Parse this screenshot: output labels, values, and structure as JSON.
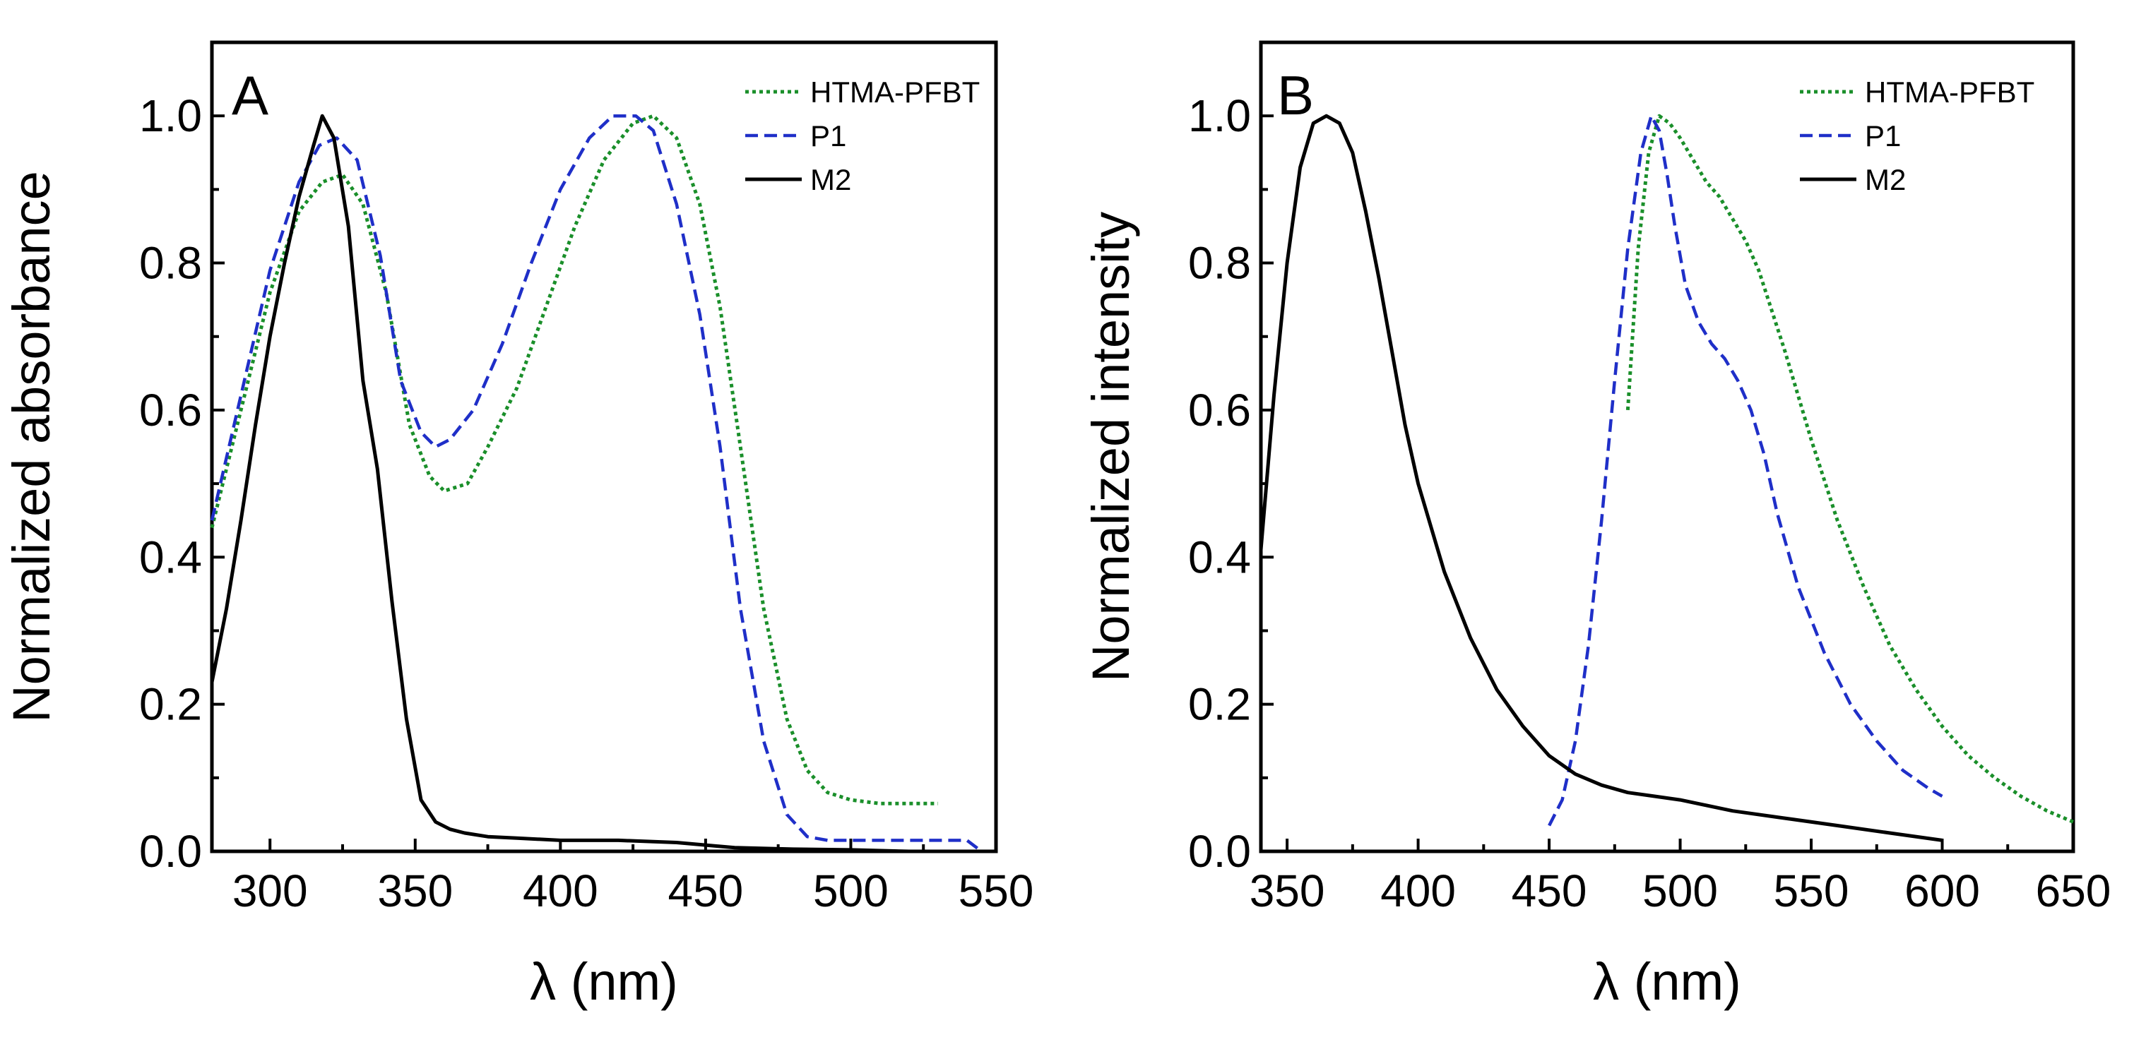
{
  "colors": {
    "HTMA-PFBT": "#1a8f2a",
    "P1": "#1f2fc8",
    "M2": "#000000"
  },
  "chart_data": [
    {
      "type": "line",
      "panel_label": "A",
      "title": "",
      "xlabel": "λ (nm)",
      "ylabel": "Normalized absorbance",
      "xlim": [
        280,
        550
      ],
      "ylim": [
        0,
        1.1
      ],
      "xticks": [
        300,
        350,
        400,
        450,
        500,
        550
      ],
      "yticks": [
        0.0,
        0.2,
        0.4,
        0.6,
        0.8,
        1.0
      ],
      "xtick_labels": [
        "300",
        "350",
        "400",
        "450",
        "500",
        "550"
      ],
      "ytick_labels": [
        "0.0",
        "0.2",
        "0.4",
        "0.6",
        "0.8",
        "1.0"
      ],
      "legend_position": "top-right",
      "grid": false,
      "series": [
        {
          "name": "HTMA-PFBT",
          "style": "dotted",
          "x": [
            280,
            290,
            300,
            310,
            318,
            325,
            332,
            340,
            348,
            355,
            360,
            368,
            375,
            385,
            395,
            405,
            415,
            425,
            432,
            440,
            448,
            455,
            462,
            470,
            478,
            485,
            492,
            500,
            510,
            520,
            530
          ],
          "y": [
            0.44,
            0.6,
            0.76,
            0.87,
            0.91,
            0.92,
            0.88,
            0.76,
            0.58,
            0.51,
            0.49,
            0.5,
            0.55,
            0.63,
            0.74,
            0.85,
            0.94,
            0.99,
            1.0,
            0.97,
            0.88,
            0.74,
            0.55,
            0.33,
            0.18,
            0.11,
            0.08,
            0.07,
            0.065,
            0.065,
            0.065
          ]
        },
        {
          "name": "P1",
          "style": "dashed",
          "x": [
            280,
            290,
            300,
            310,
            317,
            323,
            330,
            338,
            345,
            352,
            357,
            362,
            370,
            380,
            390,
            400,
            410,
            418,
            426,
            432,
            440,
            448,
            455,
            462,
            470,
            478,
            485,
            492,
            500,
            510,
            520,
            530,
            540,
            545
          ],
          "y": [
            0.45,
            0.62,
            0.79,
            0.91,
            0.96,
            0.97,
            0.94,
            0.81,
            0.64,
            0.57,
            0.55,
            0.56,
            0.6,
            0.69,
            0.8,
            0.9,
            0.97,
            1.0,
            1.0,
            0.98,
            0.88,
            0.73,
            0.55,
            0.33,
            0.15,
            0.05,
            0.02,
            0.015,
            0.015,
            0.015,
            0.015,
            0.015,
            0.015,
            0.0
          ]
        },
        {
          "name": "M2",
          "style": "solid",
          "x": [
            280,
            285,
            290,
            295,
            300,
            305,
            310,
            315,
            318,
            322,
            327,
            332,
            337,
            342,
            347,
            352,
            357,
            362,
            367,
            375,
            385,
            400,
            420,
            440,
            460,
            480,
            500,
            520,
            540
          ],
          "y": [
            0.23,
            0.33,
            0.45,
            0.58,
            0.7,
            0.8,
            0.89,
            0.96,
            1.0,
            0.97,
            0.85,
            0.64,
            0.52,
            0.34,
            0.18,
            0.07,
            0.04,
            0.03,
            0.025,
            0.02,
            0.018,
            0.015,
            0.015,
            0.012,
            0.005,
            0.003,
            0.002,
            0.0,
            0.0
          ]
        }
      ]
    },
    {
      "type": "line",
      "panel_label": "B",
      "title": "",
      "xlabel": "λ (nm)",
      "ylabel": "Normalized intensity",
      "xlim": [
        340,
        650
      ],
      "ylim": [
        0,
        1.1
      ],
      "xticks": [
        350,
        400,
        450,
        500,
        550,
        600,
        650
      ],
      "yticks": [
        0.0,
        0.2,
        0.4,
        0.6,
        0.8,
        1.0
      ],
      "xtick_labels": [
        "350",
        "400",
        "450",
        "500",
        "550",
        "600",
        "650"
      ],
      "ytick_labels": [
        "0.0",
        "0.2",
        "0.4",
        "0.6",
        "0.8",
        "1.0"
      ],
      "legend_position": "top-right",
      "grid": false,
      "series": [
        {
          "name": "HTMA-PFBT",
          "style": "dotted",
          "x": [
            480,
            484,
            488,
            492,
            496,
            500,
            505,
            510,
            515,
            520,
            525,
            530,
            540,
            550,
            560,
            570,
            580,
            590,
            600,
            610,
            620,
            630,
            640,
            650
          ],
          "y": [
            0.6,
            0.82,
            0.95,
            1.0,
            0.99,
            0.97,
            0.94,
            0.91,
            0.89,
            0.86,
            0.83,
            0.79,
            0.68,
            0.56,
            0.45,
            0.36,
            0.28,
            0.22,
            0.17,
            0.13,
            0.1,
            0.075,
            0.055,
            0.04
          ]
        },
        {
          "name": "P1",
          "style": "dashed",
          "x": [
            450,
            455,
            460,
            465,
            470,
            475,
            480,
            485,
            489,
            492,
            495,
            498,
            502,
            507,
            512,
            517,
            522,
            527,
            532,
            537,
            545,
            555,
            565,
            575,
            585,
            595,
            600
          ],
          "y": [
            0.035,
            0.07,
            0.15,
            0.28,
            0.45,
            0.64,
            0.82,
            0.95,
            1.0,
            0.98,
            0.92,
            0.85,
            0.77,
            0.72,
            0.69,
            0.67,
            0.64,
            0.6,
            0.54,
            0.46,
            0.36,
            0.27,
            0.2,
            0.15,
            0.11,
            0.085,
            0.075
          ]
        },
        {
          "name": "M2",
          "style": "solid",
          "x": [
            340,
            345,
            350,
            355,
            360,
            365,
            370,
            375,
            380,
            385,
            390,
            395,
            400,
            410,
            420,
            430,
            440,
            450,
            460,
            470,
            480,
            490,
            500,
            520,
            540,
            560,
            580,
            600
          ],
          "y": [
            0.41,
            0.62,
            0.8,
            0.93,
            0.99,
            1.0,
            0.99,
            0.95,
            0.87,
            0.78,
            0.68,
            0.58,
            0.5,
            0.38,
            0.29,
            0.22,
            0.17,
            0.13,
            0.105,
            0.09,
            0.08,
            0.075,
            0.07,
            0.055,
            0.045,
            0.035,
            0.025,
            0.015
          ]
        }
      ]
    }
  ]
}
